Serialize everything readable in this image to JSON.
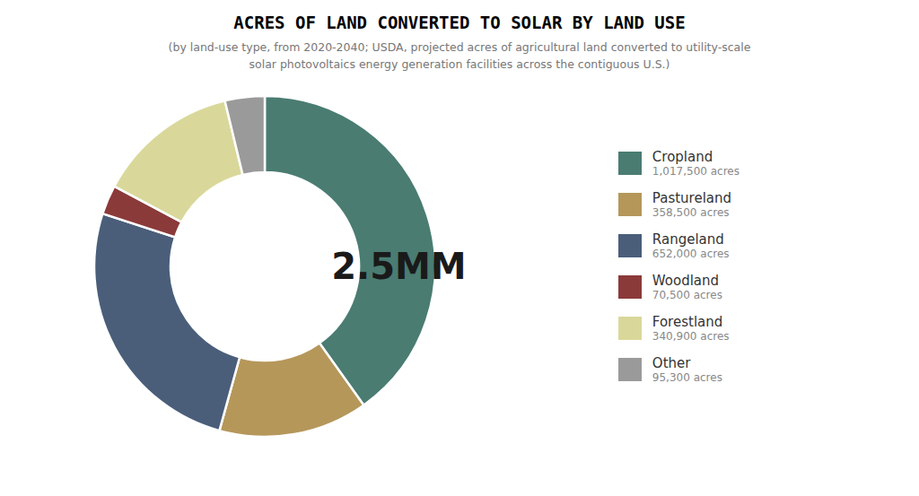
{
  "chart_data": {
    "type": "pie",
    "title": "ACRES OF LAND CONVERTED TO SOLAR BY LAND USE",
    "subtitle": "(by land-use type, from 2020-2040; USDA, projected acres of agricultural land converted to utility-scale\nsolar photovoltaics energy generation facilities across the contiguous U.S.)",
    "annotations": [
      "2.5MM"
    ],
    "categories": [
      "Cropland",
      "Pastureland",
      "Rangeland",
      "Woodland",
      "Forestland",
      "Other"
    ],
    "values": [
      1017500,
      358500,
      652000,
      70500,
      340900,
      95300
    ],
    "value_labels": [
      "1,017,500 acres",
      "358,500 acres",
      "652,000 acres",
      "70,500 acres",
      "340,900 acres",
      "95,300 acres"
    ],
    "colors": [
      "#4a7c72",
      "#b5975a",
      "#4a5e7a",
      "#8b3a3a",
      "#d9d89a",
      "#9a9a9a"
    ],
    "legend": "right"
  }
}
